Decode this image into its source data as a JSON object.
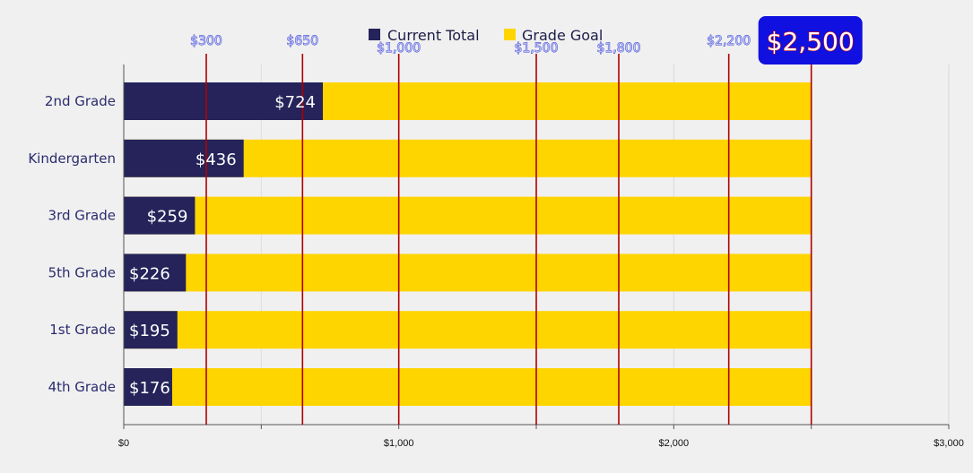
{
  "chart_data": {
    "type": "bar",
    "orientation": "horizontal",
    "stacked": false,
    "categories": [
      "2nd Grade",
      "Kindergarten",
      "3rd Grade",
      "5th Grade",
      "1st Grade",
      "4th Grade"
    ],
    "series": [
      {
        "name": "Current Total",
        "values": [
          724,
          436,
          259,
          226,
          195,
          176
        ],
        "color": "#25235a",
        "data_labels": [
          "$724",
          "$436",
          "$259",
          "$226",
          "$195",
          "$176"
        ]
      },
      {
        "name": "Grade Goal",
        "values": [
          2500,
          2500,
          2500,
          2500,
          2500,
          2500
        ],
        "color": "#ffd500"
      }
    ],
    "xlim": [
      0,
      3000
    ],
    "x_ticks": [
      {
        "value": 0,
        "label": "$0"
      },
      {
        "value": 1000,
        "label": "$1,000"
      },
      {
        "value": 2000,
        "label": "$2,000"
      },
      {
        "value": 3000,
        "label": "$3,000"
      }
    ],
    "x_minor_ticks": [
      500,
      1500,
      2500
    ],
    "reference_lines": [
      {
        "value": 300,
        "label": "$300"
      },
      {
        "value": 650,
        "label": "$650"
      },
      {
        "value": 1000,
        "label": "$1,000"
      },
      {
        "value": 1500,
        "label": "$1,500"
      },
      {
        "value": 1800,
        "label": "$1,800"
      },
      {
        "value": 2200,
        "label": "$2,200"
      },
      {
        "value": 2500,
        "label": "$2,500",
        "highlight": true
      }
    ],
    "reference_line_color": "#b00000",
    "highlight_box_color": "#1010e0",
    "legend_position": "top-center",
    "grid": true,
    "title": "",
    "xlabel": "",
    "ylabel": ""
  }
}
